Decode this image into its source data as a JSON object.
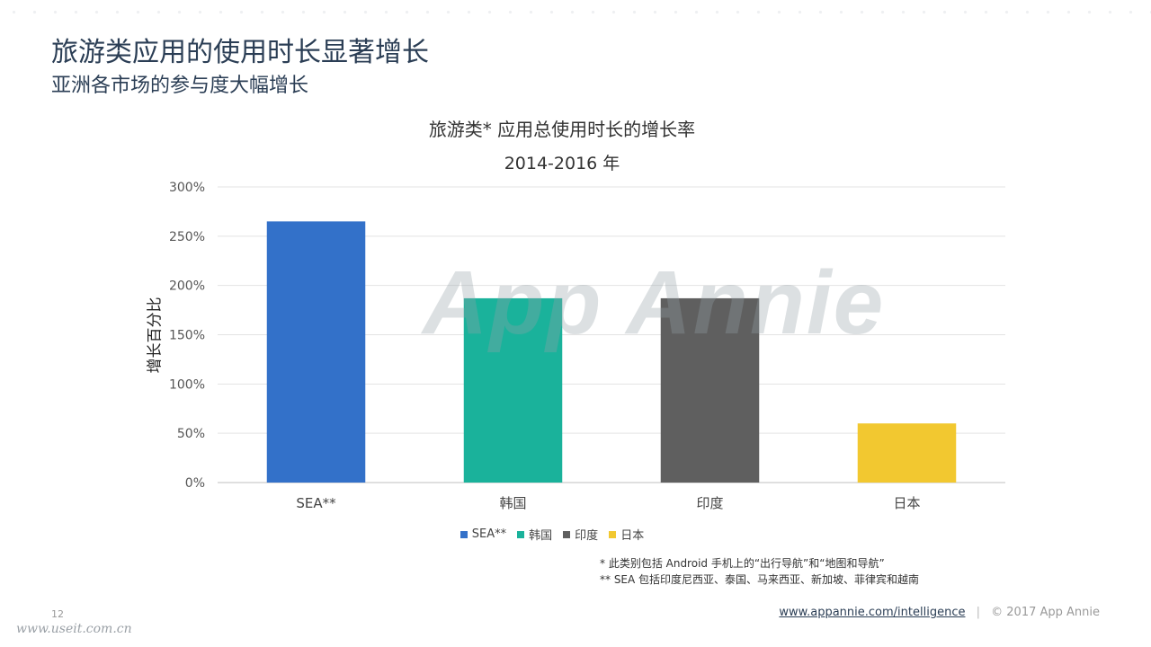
{
  "header": {
    "title": "旅游类应用的使用时长显著增长",
    "subtitle": "亚洲各市场的参与度大幅增长"
  },
  "chart_data": {
    "type": "bar",
    "title": "旅游类* 应用总使用时长的增长率",
    "subtitle": "2014-2016 年",
    "ylabel": "增长百分比",
    "xlabel": "",
    "categories": [
      "SEA**",
      "韩国",
      "印度",
      "日本"
    ],
    "values": [
      265,
      187,
      187,
      60
    ],
    "colors": [
      "#3371c9",
      "#1ab29b",
      "#5f5f5f",
      "#f2c830"
    ],
    "ylim": [
      0,
      300
    ],
    "yticks": [
      0,
      50,
      100,
      150,
      200,
      250,
      300
    ],
    "ytick_labels": [
      "0%",
      "50%",
      "100%",
      "150%",
      "200%",
      "250%",
      "300%"
    ],
    "grid": true,
    "legend": [
      {
        "label": "SEA**",
        "color": "#3371c9"
      },
      {
        "label": "韩国",
        "color": "#1ab29b"
      },
      {
        "label": "印度",
        "color": "#5f5f5f"
      },
      {
        "label": "日本",
        "color": "#f2c830"
      }
    ],
    "legend_position": "bottom"
  },
  "footnotes": {
    "line1": "* 此类别包括 Android 手机上的“出行导航”和“地图和导航”",
    "line2": "** SEA 包括印度尼西亚、泰国、马来西亚、新加坡、菲律宾和越南"
  },
  "footer": {
    "page_number": "12",
    "link": "www.appannie.com/intelligence",
    "separator": "|",
    "copyright": "© 2017 App Annie"
  },
  "watermarks": {
    "logo": "App Annie",
    "site": "www.useit.com.cn"
  }
}
